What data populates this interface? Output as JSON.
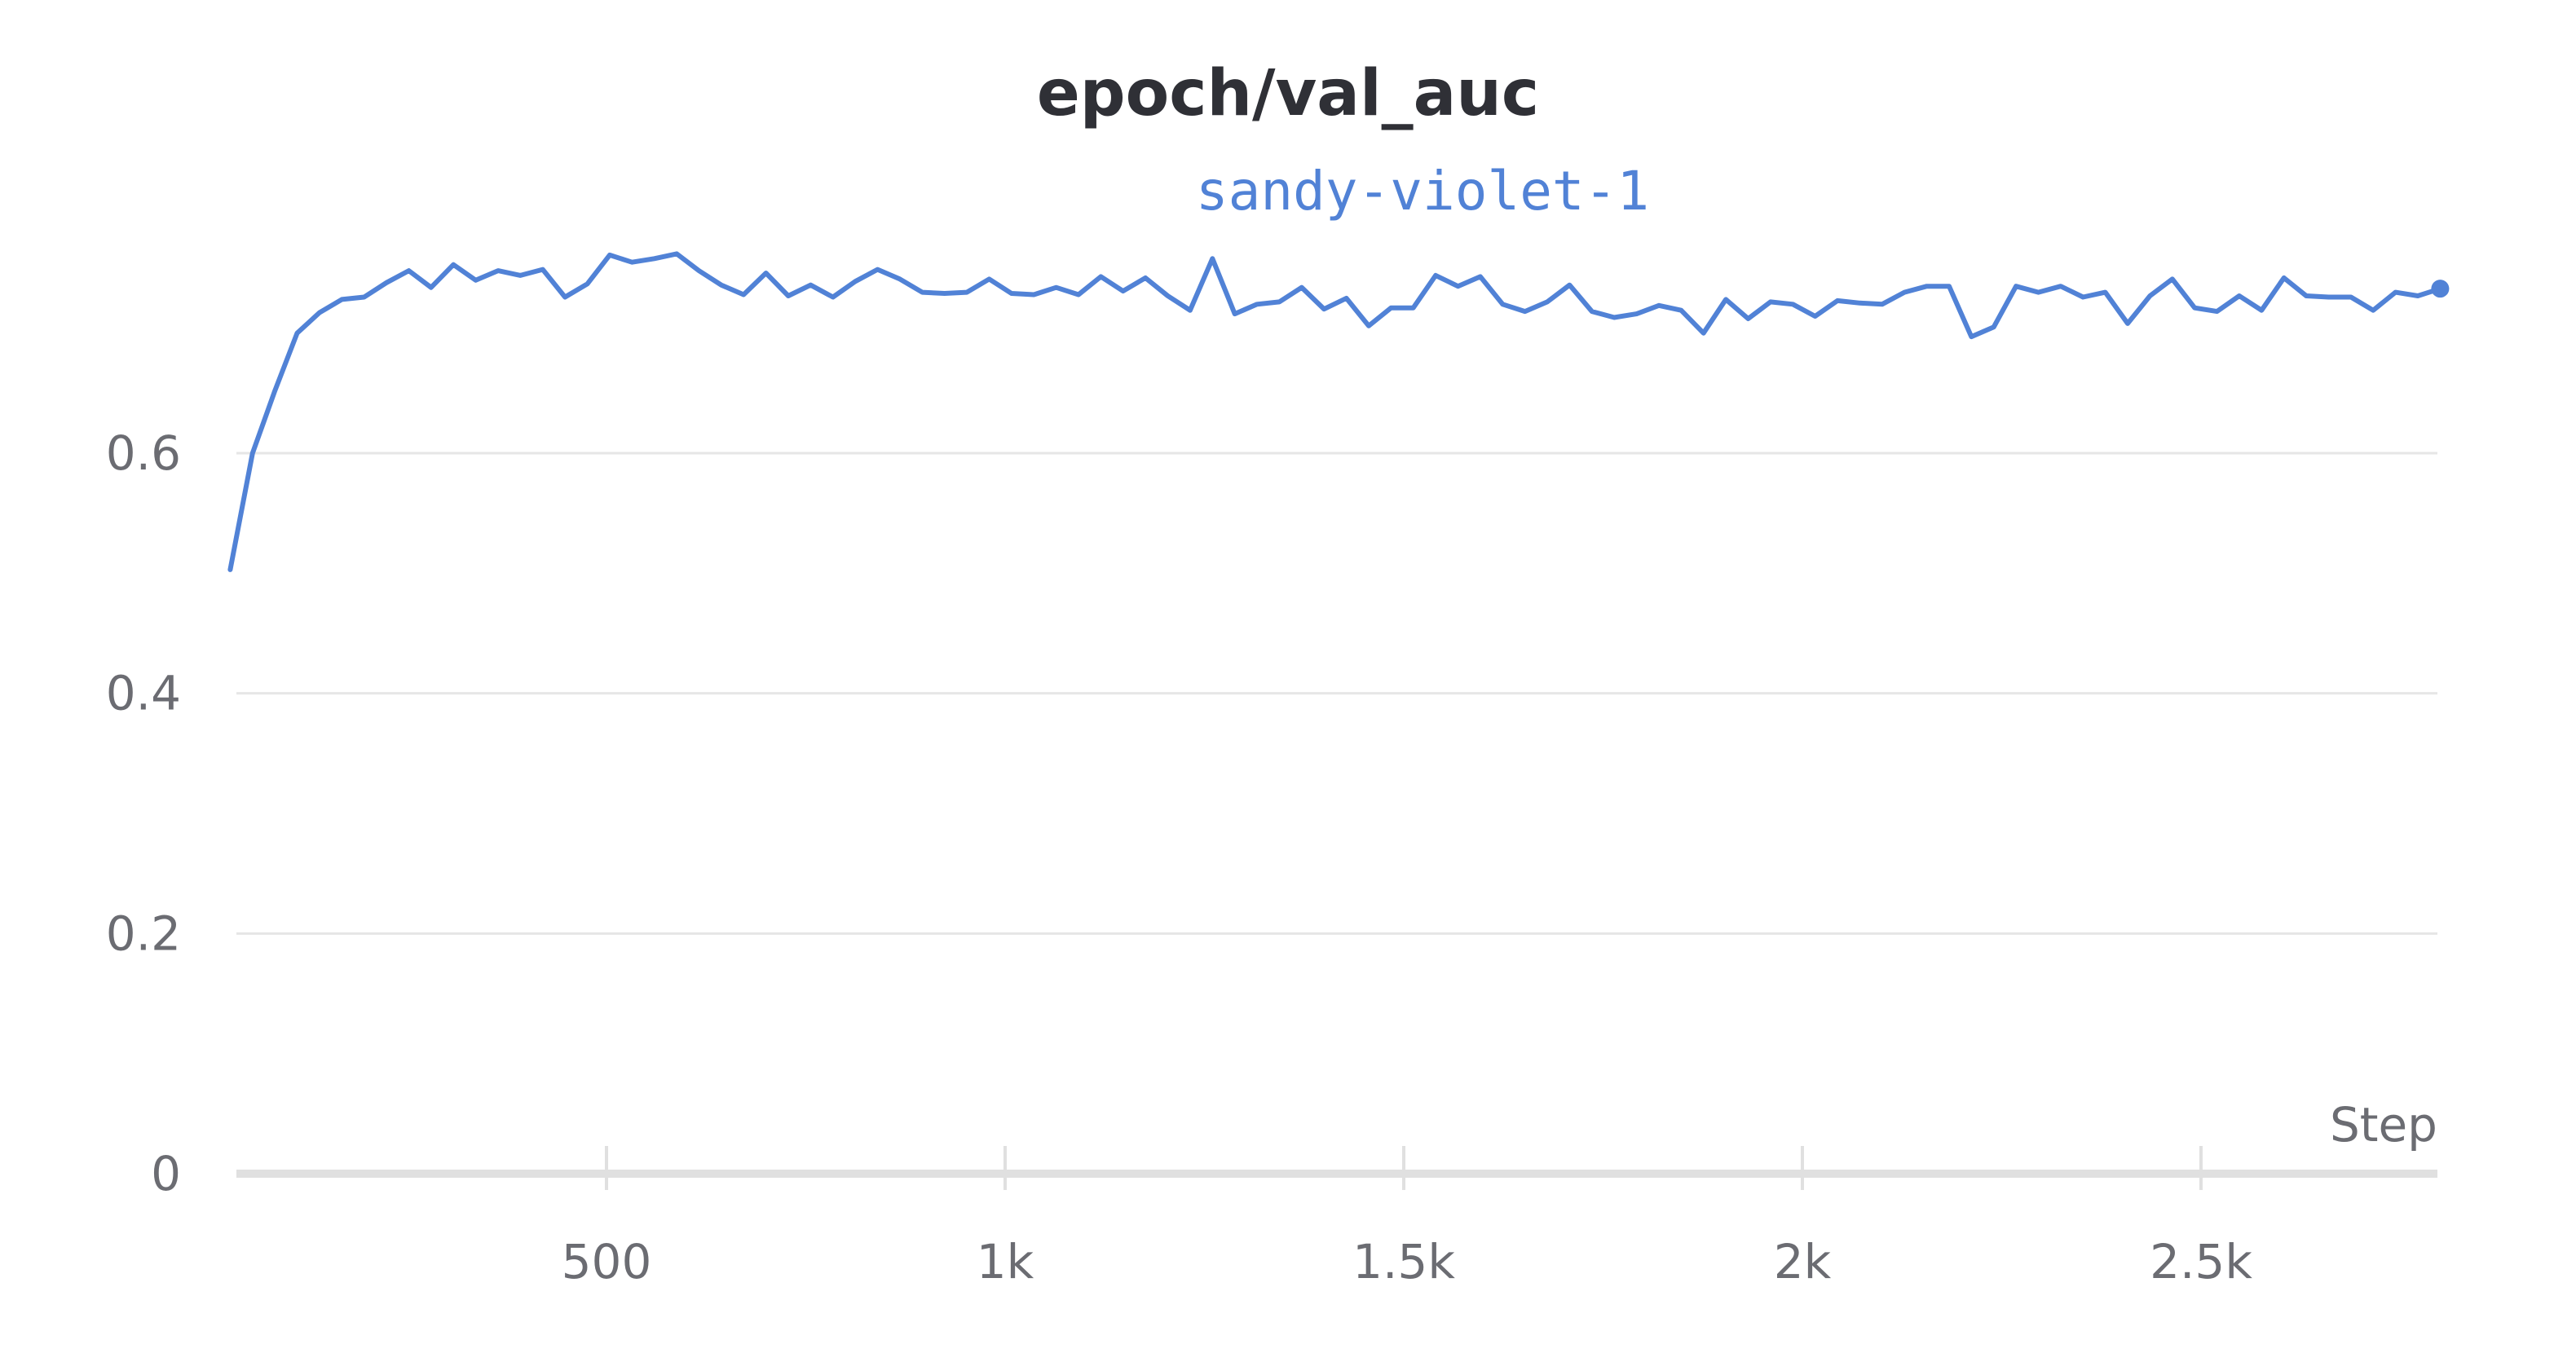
{
  "chart_data": {
    "type": "line",
    "title": "epoch/val_auc",
    "xlabel": "Step",
    "ylabel": "",
    "xlim": [
      0,
      2800
    ],
    "ylim": [
      0,
      0.75
    ],
    "grid": true,
    "legend": "top",
    "x_ticks": [
      {
        "value": 500,
        "label": "500"
      },
      {
        "value": 1000,
        "label": "1k"
      },
      {
        "value": 1500,
        "label": "1.5k"
      },
      {
        "value": 2000,
        "label": "2k"
      },
      {
        "value": 2500,
        "label": "2.5k"
      }
    ],
    "y_ticks": [
      {
        "value": 0,
        "label": "0"
      },
      {
        "value": 0.2,
        "label": "0.2"
      },
      {
        "value": 0.4,
        "label": "0.4"
      },
      {
        "value": 0.6,
        "label": "0.6"
      }
    ],
    "series": [
      {
        "name": "sandy-violet-1",
        "color": "#5182d6",
        "x": [
          28,
          56,
          84,
          112,
          140,
          168,
          196,
          224,
          252,
          280,
          308,
          336,
          364,
          392,
          420,
          448,
          476,
          504,
          532,
          560,
          588,
          616,
          644,
          672,
          700,
          728,
          756,
          784,
          812,
          840,
          868,
          896,
          924,
          952,
          980,
          1008,
          1036,
          1064,
          1092,
          1120,
          1148,
          1176,
          1204,
          1232,
          1260,
          1288,
          1316,
          1344,
          1372,
          1400,
          1428,
          1456,
          1484,
          1512,
          1540,
          1568,
          1596,
          1624,
          1652,
          1680,
          1708,
          1736,
          1764,
          1792,
          1820,
          1848,
          1876,
          1904,
          1932,
          1960,
          1988,
          2016,
          2044,
          2072,
          2100,
          2128,
          2156,
          2184,
          2212,
          2240,
          2268,
          2296,
          2324,
          2352,
          2380,
          2408,
          2436,
          2464,
          2492,
          2520,
          2548,
          2576,
          2604,
          2632,
          2660,
          2688,
          2716,
          2744,
          2772,
          2800
        ],
        "y": [
          0.503,
          0.6,
          0.652,
          0.7,
          0.717,
          0.728,
          0.73,
          0.742,
          0.752,
          0.738,
          0.757,
          0.744,
          0.752,
          0.748,
          0.753,
          0.73,
          0.741,
          0.765,
          0.759,
          0.762,
          0.766,
          0.752,
          0.74,
          0.732,
          0.75,
          0.731,
          0.74,
          0.73,
          0.743,
          0.753,
          0.745,
          0.734,
          0.733,
          0.734,
          0.745,
          0.733,
          0.732,
          0.738,
          0.732,
          0.747,
          0.735,
          0.746,
          0.731,
          0.719,
          0.762,
          0.716,
          0.724,
          0.726,
          0.738,
          0.72,
          0.729,
          0.706,
          0.721,
          0.721,
          0.748,
          0.739,
          0.747,
          0.724,
          0.718,
          0.726,
          0.74,
          0.718,
          0.713,
          0.716,
          0.723,
          0.719,
          0.7,
          0.728,
          0.712,
          0.726,
          0.724,
          0.714,
          0.727,
          0.725,
          0.724,
          0.734,
          0.739,
          0.739,
          0.697,
          0.705,
          0.739,
          0.734,
          0.739,
          0.73,
          0.734,
          0.708,
          0.731,
          0.745,
          0.721,
          0.718,
          0.731,
          0.719,
          0.746,
          0.731,
          0.73,
          0.73,
          0.719,
          0.734,
          0.731,
          0.737
        ]
      }
    ]
  }
}
